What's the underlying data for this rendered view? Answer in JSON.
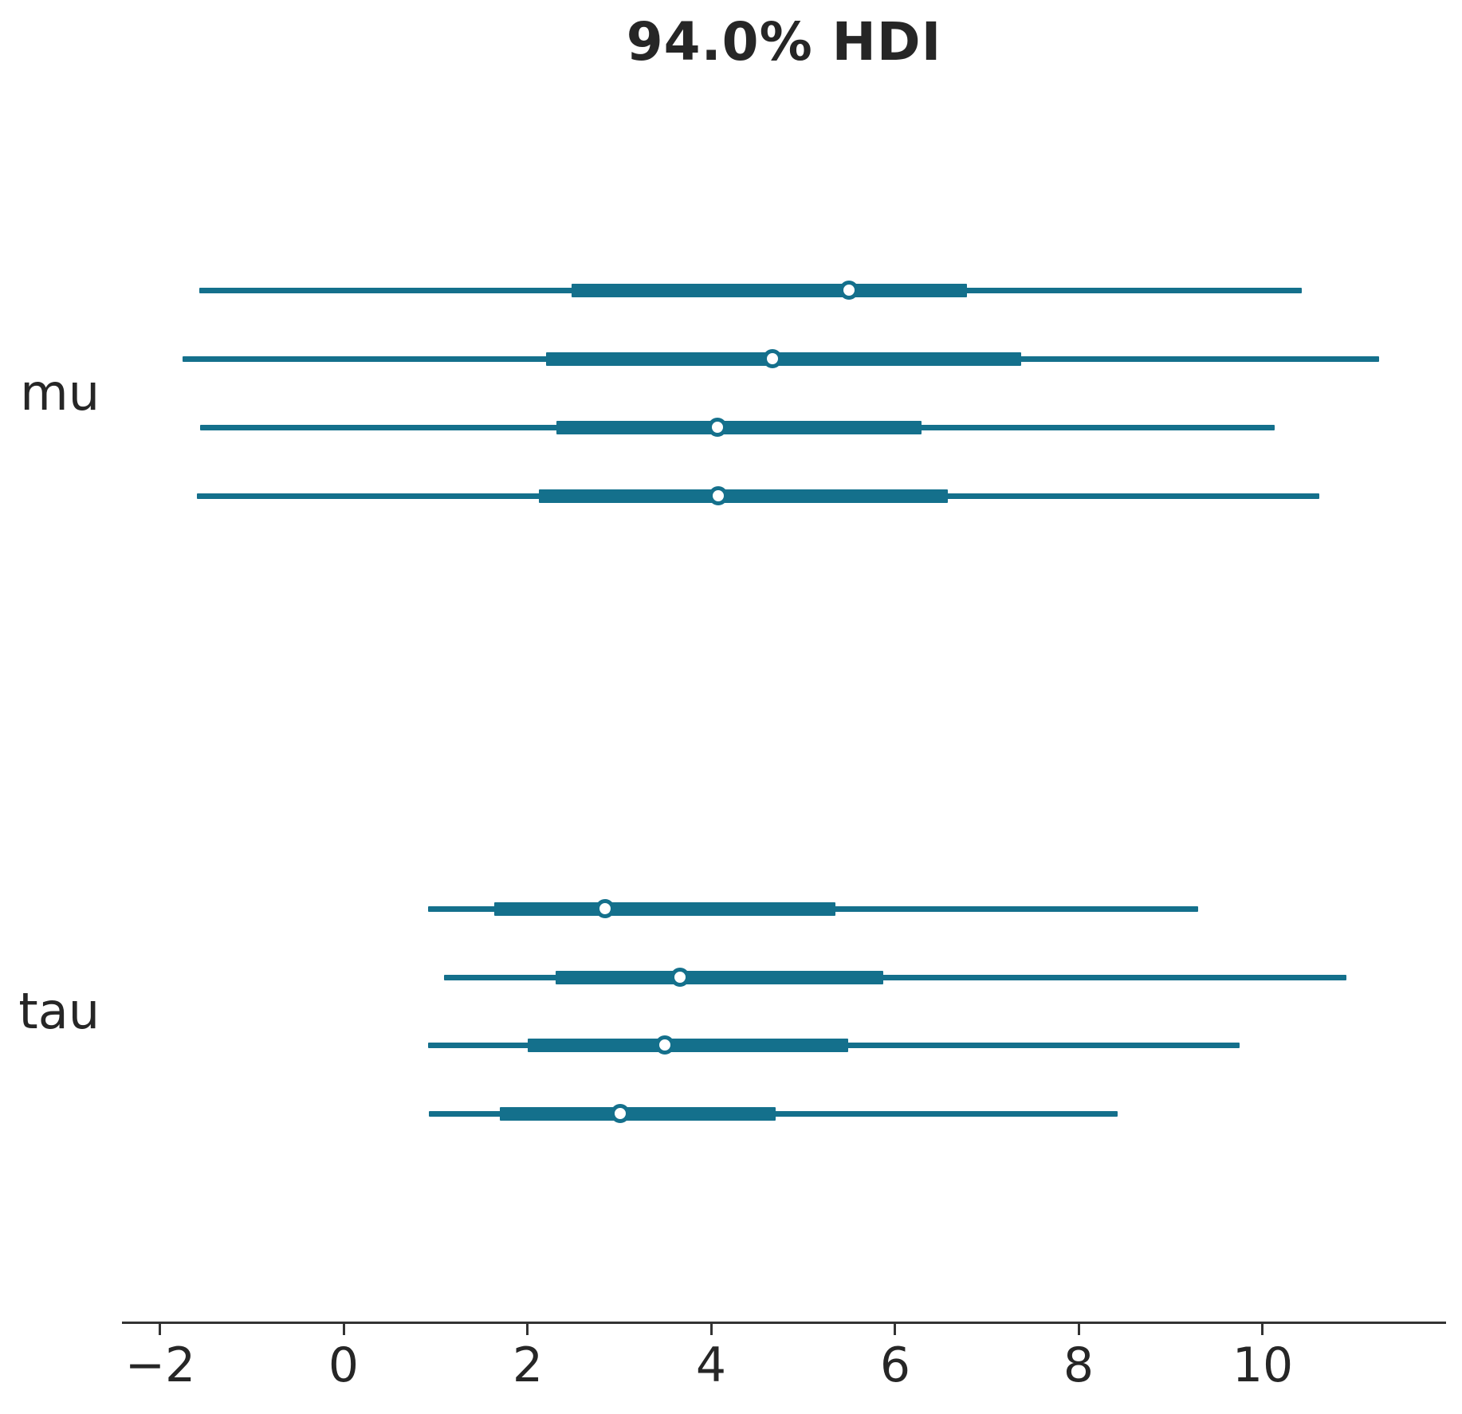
{
  "title": "94.0% HDI",
  "colors": {
    "interval": "#14708C",
    "axis": "#333333",
    "text": "#262626",
    "marker_fill": "#ffffff"
  },
  "chart_data": {
    "type": "forest",
    "title": "94.0% HDI",
    "hdi_prob": 0.94,
    "legend": "none",
    "grid": false,
    "xlabel": "",
    "ylabel": "",
    "xlim": [
      -2.41,
      12.0
    ],
    "x_ticks": [
      -2,
      0,
      2,
      4,
      6,
      8,
      10
    ],
    "x_tick_labels": [
      "−2",
      "0",
      "2",
      "4",
      "6",
      "8",
      "10"
    ],
    "parameters": [
      {
        "name": "mu",
        "chains": [
          {
            "chain": 0,
            "hdi": [
              -1.57,
              10.43
            ],
            "quartile": [
              2.48,
              6.78
            ],
            "median": 5.5
          },
          {
            "chain": 1,
            "hdi": [
              -1.75,
              11.27
            ],
            "quartile": [
              2.2,
              7.37
            ],
            "median": 4.67
          },
          {
            "chain": 2,
            "hdi": [
              -1.56,
              10.14
            ],
            "quartile": [
              2.32,
              6.29
            ],
            "median": 4.07
          },
          {
            "chain": 3,
            "hdi": [
              -1.6,
              10.62
            ],
            "quartile": [
              2.13,
              6.58
            ],
            "median": 4.08
          }
        ]
      },
      {
        "name": "tau",
        "chains": [
          {
            "chain": 0,
            "hdi": [
              0.92,
              9.3
            ],
            "quartile": [
              1.64,
              5.35
            ],
            "median": 2.85
          },
          {
            "chain": 1,
            "hdi": [
              1.09,
              10.91
            ],
            "quartile": [
              2.31,
              5.88
            ],
            "median": 3.66
          },
          {
            "chain": 2,
            "hdi": [
              0.92,
              9.75
            ],
            "quartile": [
              2.0,
              5.49
            ],
            "median": 3.5
          },
          {
            "chain": 3,
            "hdi": [
              0.93,
              8.43
            ],
            "quartile": [
              1.7,
              4.7
            ],
            "median": 3.01
          }
        ]
      }
    ]
  }
}
